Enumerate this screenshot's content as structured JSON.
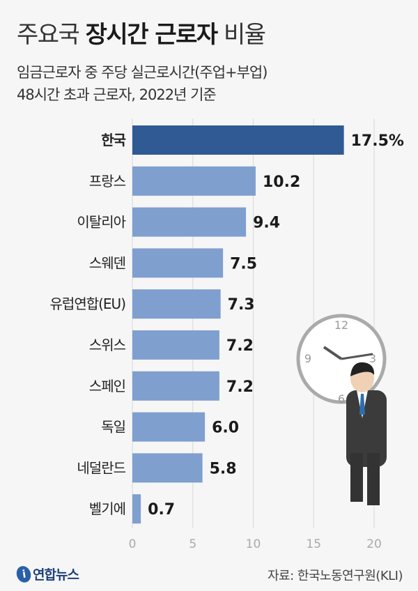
{
  "header": {
    "title_pre": "주요국",
    "title_bold": "장시간 근로자",
    "title_post": "비율",
    "subtitle_1": "임금근로자 중 주당 실근로시간(주업+부업)",
    "subtitle_2": "48시간 초과 근로자, 2022년 기준"
  },
  "chart_data": {
    "type": "bar",
    "orientation": "horizontal",
    "categories": [
      "한국",
      "프랑스",
      "이탈리아",
      "스웨덴",
      "유럽연합(EU)",
      "스위스",
      "스페인",
      "독일",
      "네덜란드",
      "벨기에"
    ],
    "values": [
      17.5,
      10.2,
      9.4,
      7.5,
      7.3,
      7.2,
      7.2,
      6.0,
      5.8,
      0.7
    ],
    "value_labels": [
      "17.5%",
      "10.2",
      "9.4",
      "7.5",
      "7.3",
      "7.2",
      "7.2",
      "6.0",
      "5.8",
      "0.7"
    ],
    "xlim": [
      0,
      20
    ],
    "xticks": [
      "0",
      "5",
      "10",
      "15",
      "20"
    ],
    "grid": true,
    "colors": {
      "highlight": "#2f5a94",
      "default": "#7f9fcf"
    }
  },
  "footer": {
    "logo": "연합뉴스",
    "source": "자료: 한국노동연구원(KLI)"
  },
  "clock": {
    "numbers": [
      "12",
      "3",
      "6",
      "9"
    ]
  }
}
